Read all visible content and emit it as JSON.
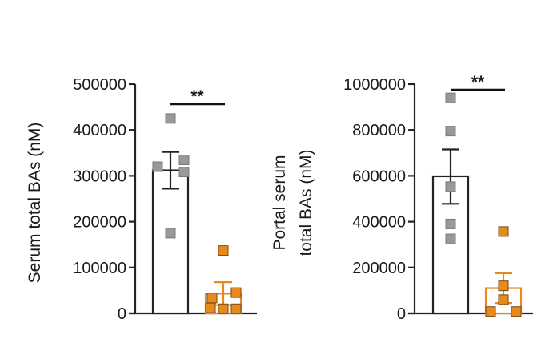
{
  "chart_data": [
    {
      "type": "bar",
      "ylabel": "Serum total BAs (nM)",
      "ylabel_lines": [
        "Serum total BAs (nM)"
      ],
      "ylim": [
        0,
        500000
      ],
      "yticks": [
        0,
        100000,
        200000,
        300000,
        400000,
        500000
      ],
      "ytick_labels": [
        "0",
        "100000",
        "200000",
        "300000",
        "400000",
        "500000"
      ],
      "significance": "**",
      "groups": [
        {
          "mean": 312000,
          "sem_low": 272000,
          "sem_high": 352000,
          "color": "#999999",
          "bar_fill": "#ffffff",
          "bar_stroke": "#222222",
          "points": [
            425000,
            333000,
            320000,
            312000,
            175000
          ]
        },
        {
          "mean": 43000,
          "sem_low": 18000,
          "sem_high": 68000,
          "color": "#E8891E",
          "bar_fill": "#ffffff",
          "bar_stroke": "#E8891E",
          "points": [
            137000,
            40000,
            30000,
            12000,
            10000,
            10000
          ]
        }
      ]
    },
    {
      "type": "bar",
      "ylabel": "Portal serum total BAs (nM)",
      "ylabel_lines": [
        "Portal serum",
        "total BAs (nM)"
      ],
      "ylim": [
        0,
        1000000
      ],
      "yticks": [
        0,
        200000,
        400000,
        600000,
        800000,
        1000000
      ],
      "ytick_labels": [
        "0",
        "200000",
        "400000",
        "600000",
        "800000",
        "1000000"
      ],
      "significance": "**",
      "groups": [
        {
          "mean": 598000,
          "sem_low": 478000,
          "sem_high": 715000,
          "color": "#999999",
          "bar_fill": "#ffffff",
          "bar_stroke": "#222222",
          "points": [
            940000,
            795000,
            553000,
            390000,
            325000
          ]
        },
        {
          "mean": 110000,
          "sem_low": 45000,
          "sem_high": 175000,
          "color": "#E8891E",
          "bar_fill": "#ffffff",
          "bar_stroke": "#E8891E",
          "points": [
            357000,
            120000,
            60000,
            8000,
            8000
          ]
        }
      ]
    }
  ]
}
